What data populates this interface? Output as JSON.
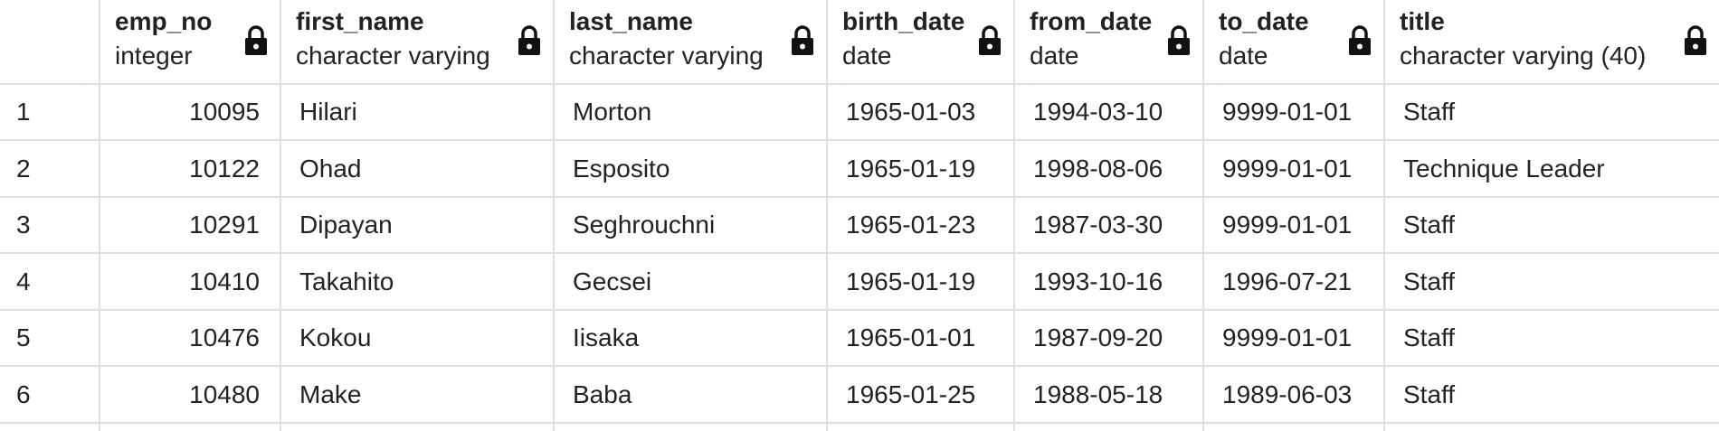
{
  "columns": [
    {
      "name": "emp_no",
      "type": "integer",
      "icon": "lock-icon"
    },
    {
      "name": "first_name",
      "type": "character varying",
      "icon": "lock-icon"
    },
    {
      "name": "last_name",
      "type": "character varying",
      "icon": "lock-icon"
    },
    {
      "name": "birth_date",
      "type": "date",
      "icon": "lock-icon"
    },
    {
      "name": "from_date",
      "type": "date",
      "icon": "lock-icon"
    },
    {
      "name": "to_date",
      "type": "date",
      "icon": "lock-icon"
    },
    {
      "name": "title",
      "type": "character varying (40)",
      "icon": "lock-icon"
    }
  ],
  "rows": [
    {
      "n": "1",
      "emp_no": "10095",
      "first_name": "Hilari",
      "last_name": "Morton",
      "birth_date": "1965-01-03",
      "from_date": "1994-03-10",
      "to_date": "9999-01-01",
      "title": "Staff"
    },
    {
      "n": "2",
      "emp_no": "10122",
      "first_name": "Ohad",
      "last_name": "Esposito",
      "birth_date": "1965-01-19",
      "from_date": "1998-08-06",
      "to_date": "9999-01-01",
      "title": "Technique Leader"
    },
    {
      "n": "3",
      "emp_no": "10291",
      "first_name": "Dipayan",
      "last_name": "Seghrouchni",
      "birth_date": "1965-01-23",
      "from_date": "1987-03-30",
      "to_date": "9999-01-01",
      "title": "Staff"
    },
    {
      "n": "4",
      "emp_no": "10410",
      "first_name": "Takahito",
      "last_name": "Gecsei",
      "birth_date": "1965-01-19",
      "from_date": "1993-10-16",
      "to_date": "1996-07-21",
      "title": "Staff"
    },
    {
      "n": "5",
      "emp_no": "10476",
      "first_name": "Kokou",
      "last_name": "Iisaka",
      "birth_date": "1965-01-01",
      "from_date": "1987-09-20",
      "to_date": "9999-01-01",
      "title": "Staff"
    },
    {
      "n": "6",
      "emp_no": "10480",
      "first_name": "Make",
      "last_name": "Baba",
      "birth_date": "1965-01-25",
      "from_date": "1988-05-18",
      "to_date": "1989-06-03",
      "title": "Staff"
    }
  ],
  "colors": {
    "grid_line": "#dcdfe6",
    "text": "#222222",
    "background": "#ffffff"
  }
}
